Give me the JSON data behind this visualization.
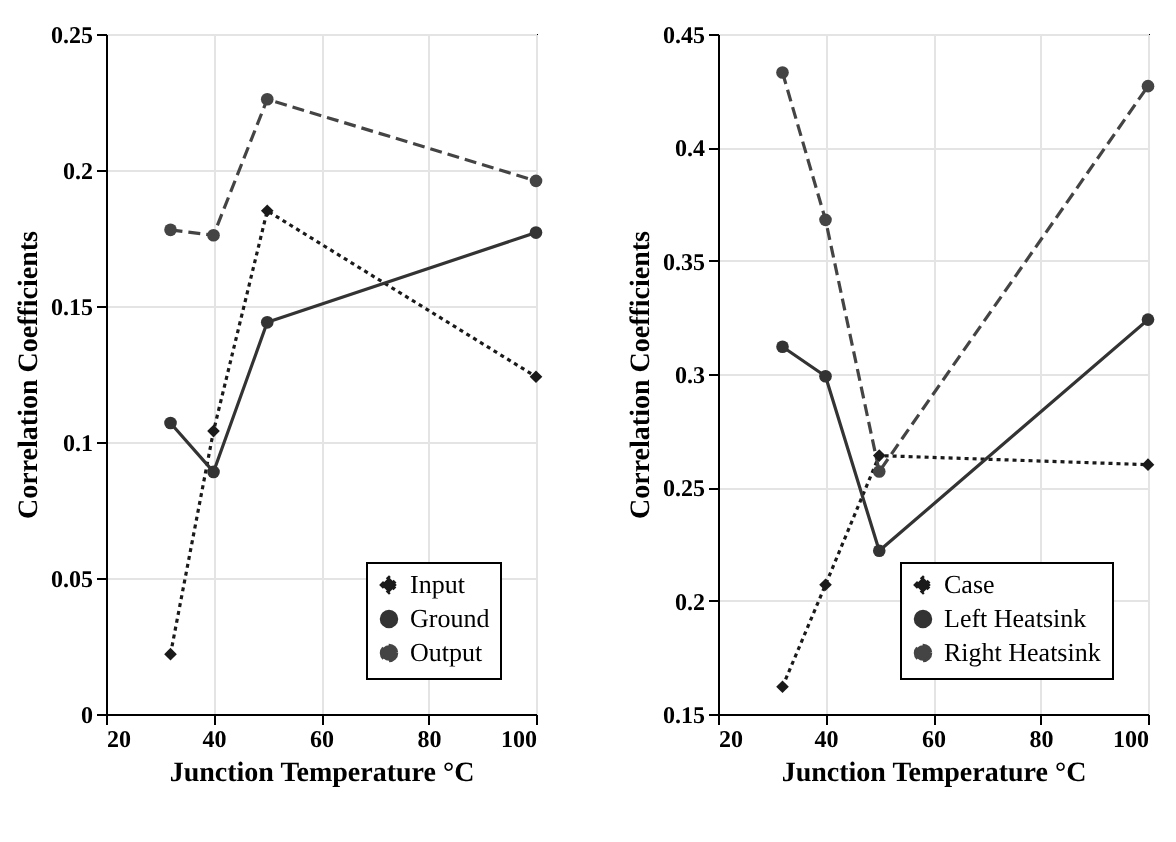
{
  "chart_data": [
    {
      "type": "line",
      "xlabel": "Junction Temperature °C",
      "ylabel": "Correlation Coefficients",
      "x": [
        32,
        40,
        50,
        100
      ],
      "xlim": [
        20,
        100
      ],
      "xticks": [
        20,
        40,
        60,
        80,
        100
      ],
      "ylim": [
        0,
        0.25
      ],
      "yticks": [
        0,
        0.05,
        0.1,
        0.15,
        0.2,
        0.25
      ],
      "grid": true,
      "legend": "bottom right",
      "series": [
        {
          "name": "Input",
          "color": "#1a1a1a",
          "line_style": "dotted",
          "marker": "diamond",
          "values": [
            0.022,
            0.104,
            0.185,
            0.124
          ]
        },
        {
          "name": "Ground",
          "color": "#333333",
          "line_style": "solid",
          "marker": "circle",
          "values": [
            0.107,
            0.089,
            0.144,
            0.177
          ]
        },
        {
          "name": "Output",
          "color": "#444444",
          "line_style": "dashed",
          "marker": "circle",
          "values": [
            0.178,
            0.176,
            0.226,
            0.196
          ]
        }
      ]
    },
    {
      "type": "line",
      "xlabel": "Junction Temperature °C",
      "ylabel": "Correlation Coefficients",
      "x": [
        32,
        40,
        50,
        100
      ],
      "xlim": [
        20,
        100
      ],
      "xticks": [
        20,
        40,
        60,
        80,
        100
      ],
      "ylim": [
        0.15,
        0.45
      ],
      "yticks": [
        0.15,
        0.2,
        0.25,
        0.3,
        0.35,
        0.4,
        0.45
      ],
      "grid": true,
      "legend": "bottom right",
      "series": [
        {
          "name": "Case",
          "color": "#1a1a1a",
          "line_style": "dotted",
          "marker": "diamond",
          "values": [
            0.162,
            0.207,
            0.264,
            0.26
          ]
        },
        {
          "name": "Left Heatsink",
          "color": "#333333",
          "line_style": "solid",
          "marker": "circle",
          "values": [
            0.312,
            0.299,
            0.222,
            0.324
          ]
        },
        {
          "name": "Right Heatsink",
          "color": "#444444",
          "line_style": "dashed",
          "marker": "circle",
          "values": [
            0.433,
            0.368,
            0.257,
            0.427
          ]
        }
      ]
    }
  ]
}
